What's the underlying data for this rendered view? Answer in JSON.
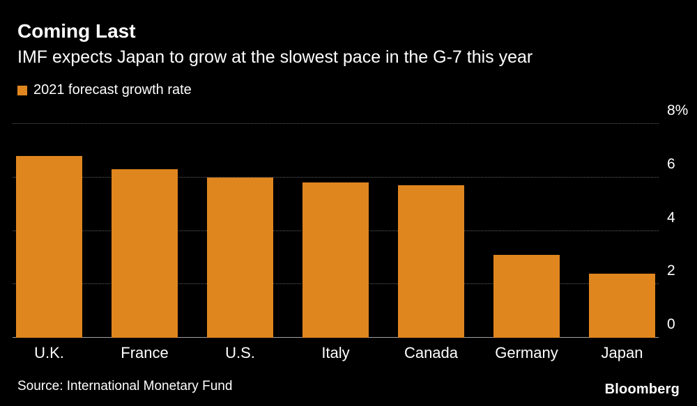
{
  "chart_data": {
    "type": "bar",
    "title": "Coming Last",
    "subtitle": "IMF expects Japan to grow at the slowest pace in the G-7 this year",
    "legend": "2021 forecast growth rate",
    "categories": [
      "U.K.",
      "France",
      "U.S.",
      "Italy",
      "Canada",
      "Germany",
      "Japan"
    ],
    "values": [
      6.8,
      6.3,
      6.0,
      5.8,
      5.7,
      3.1,
      2.4
    ],
    "ylim": [
      0,
      8
    ],
    "yticks": [
      {
        "value": 8,
        "label": "8%"
      },
      {
        "value": 6,
        "label": "6"
      },
      {
        "value": 4,
        "label": "4"
      },
      {
        "value": 2,
        "label": "2"
      },
      {
        "value": 0,
        "label": "0"
      }
    ],
    "bar_color": "#e0861f",
    "grid": "horizontal dotted gridlines",
    "legend_position": "top-left",
    "axis_side": "right",
    "colors": {
      "background": "#000000",
      "text": "#ffffff",
      "gridline": "#616161",
      "baseline": "#a3a3a3"
    }
  },
  "footer": {
    "source": "Source: International Monetary Fund",
    "brand": "Bloomberg"
  }
}
